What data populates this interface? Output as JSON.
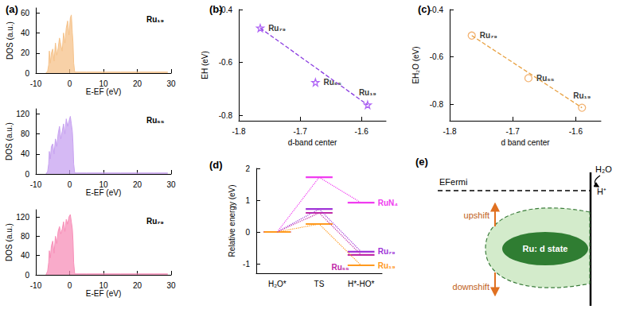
{
  "chart_data": [
    {
      "type": "area",
      "title": "(a)",
      "annotation": "Ru₁₉",
      "color": "#f5c28a",
      "xlabel": "E-EF (eV)",
      "ylabel": "DOS (a.u.)",
      "xlim": [
        -10,
        30
      ],
      "xticks": [
        -10,
        0,
        10,
        20,
        30
      ],
      "ylim": [
        0,
        65
      ],
      "yticks": [
        0,
        20,
        40,
        60
      ],
      "x": [
        -7,
        -6.5,
        -6.2,
        -6,
        -5.7,
        -5.4,
        -5,
        -4.6,
        -4.2,
        -3.8,
        -3.4,
        -3,
        -2.6,
        -2.2,
        -1.8,
        -1.4,
        -1,
        -0.6,
        -0.2,
        0.2,
        0.5,
        0.8,
        1,
        1.2,
        1.5,
        5,
        10,
        15,
        20,
        25,
        29
      ],
      "values": [
        0,
        2,
        8,
        22,
        10,
        20,
        24,
        12,
        30,
        18,
        25,
        35,
        28,
        22,
        40,
        30,
        45,
        52,
        38,
        55,
        58,
        40,
        30,
        10,
        1,
        1,
        1,
        1,
        1,
        1,
        1
      ]
    },
    {
      "type": "area",
      "annotation": "Ru₅₅",
      "color": "#c7a2f0",
      "xlabel": "E-EF (eV)",
      "ylabel": "DOS (a.u.)",
      "xlim": [
        -10,
        30
      ],
      "xticks": [
        -10,
        0,
        10,
        20,
        30
      ],
      "ylim": [
        0,
        130
      ],
      "yticks": [
        0,
        40,
        80,
        120
      ],
      "x": [
        -7,
        -6.5,
        -6.2,
        -6,
        -5.7,
        -5.4,
        -5,
        -4.6,
        -4.2,
        -3.8,
        -3.4,
        -3,
        -2.6,
        -2.2,
        -1.8,
        -1.4,
        -1,
        -0.6,
        -0.2,
        0.2,
        0.5,
        0.8,
        1,
        1.2,
        1.5,
        5,
        10,
        15,
        20,
        25,
        29
      ],
      "values": [
        0,
        5,
        20,
        45,
        30,
        55,
        60,
        40,
        70,
        55,
        80,
        95,
        70,
        85,
        100,
        80,
        110,
        95,
        105,
        115,
        100,
        85,
        60,
        20,
        2,
        2,
        2,
        2,
        2,
        2,
        2
      ]
    },
    {
      "type": "area",
      "annotation": "Ru₇₉",
      "color": "#f78fb8",
      "xlabel": "E-EF (eV)",
      "ylabel": "DOS (a.u.)",
      "xlim": [
        -10,
        30
      ],
      "xticks": [
        -10,
        0,
        10,
        20,
        30
      ],
      "ylim": [
        0,
        135
      ],
      "yticks": [
        0,
        40,
        80,
        120
      ],
      "x": [
        -7,
        -6.5,
        -6.2,
        -6,
        -5.7,
        -5.4,
        -5,
        -4.6,
        -4.2,
        -3.8,
        -3.4,
        -3,
        -2.6,
        -2.2,
        -1.8,
        -1.4,
        -1,
        -0.6,
        -0.2,
        0.2,
        0.5,
        0.8,
        1,
        1.2,
        1.5,
        5,
        10,
        15,
        20,
        25,
        29
      ],
      "values": [
        0,
        8,
        25,
        50,
        35,
        60,
        70,
        45,
        80,
        65,
        90,
        100,
        85,
        95,
        110,
        90,
        115,
        105,
        120,
        125,
        110,
        95,
        70,
        25,
        2,
        2,
        2,
        2,
        2,
        2,
        2
      ]
    },
    {
      "type": "scatter",
      "title": "(b)",
      "xlabel": "d-band center",
      "ylabel": "EH (eV)",
      "xlim": [
        -1.8,
        -1.56
      ],
      "xticks": [
        -1.8,
        -1.7,
        -1.6
      ],
      "ylim": [
        -0.82,
        -0.4
      ],
      "yticks": [
        -0.8,
        -0.6,
        -0.4
      ],
      "series": [
        {
          "type": "scatter",
          "marker": "star",
          "color": "#9b3df2",
          "x": [
            -1.765,
            -1.675,
            -1.59
          ],
          "values": [
            -0.47,
            -0.675,
            -0.76
          ],
          "point_labels": [
            "Ru₇₉",
            "Ru₅₅",
            "Ru₁₉"
          ]
        },
        {
          "type": "line",
          "line_style": "dashed",
          "color": "#8a3ce0",
          "x": [
            -1.765,
            -1.59
          ],
          "values": [
            -0.47,
            -0.76
          ]
        }
      ]
    },
    {
      "type": "scatter",
      "title": "(c)",
      "xlabel": "d band center",
      "ylabel": "EH₂O (eV)",
      "xlim": [
        -1.8,
        -1.56
      ],
      "xticks": [
        -1.8,
        -1.7,
        -1.6
      ],
      "ylim": [
        -0.87,
        -0.4
      ],
      "yticks": [
        -0.8,
        -0.6,
        -0.4
      ],
      "series": [
        {
          "type": "scatter",
          "marker": "circle",
          "color": "#f0a050",
          "x": [
            -1.765,
            -1.675,
            -1.59
          ],
          "values": [
            -0.51,
            -0.69,
            -0.815
          ],
          "point_labels": [
            "Ru₇₉",
            "Ru₅₅",
            "Ru₁₉"
          ]
        },
        {
          "type": "line",
          "line_style": "dashed",
          "color": "#e8a040",
          "x": [
            -1.765,
            -1.59
          ],
          "values": [
            -0.51,
            -0.815
          ]
        }
      ]
    },
    {
      "type": "line",
      "title": "(d)",
      "ylabel": "Relative energy (eV)",
      "categories": [
        "H₂O*",
        "TS",
        "H*-HO*"
      ],
      "ylim": [
        -1.3,
        2
      ],
      "yticks": [
        -1,
        0,
        1,
        2
      ],
      "series": [
        {
          "name": "RuN₄",
          "color": "#f03cf0",
          "line_style": "dotted",
          "values": [
            0,
            1.72,
            0.92
          ]
        },
        {
          "name": "Ru₇₉",
          "color": "#a034d8",
          "line_style": "dotted",
          "values": [
            0,
            0.72,
            -0.62
          ]
        },
        {
          "name": "Ru₅₅",
          "color": "#c02aa8",
          "line_style": "dotted",
          "values": [
            0,
            0.6,
            -0.72
          ]
        },
        {
          "name": "Ru₁₉",
          "color": "#ff9a1f",
          "line_style": "dotted",
          "values": [
            0,
            0.25,
            -1.05
          ]
        }
      ]
    }
  ],
  "diagram": {
    "title": "(e)",
    "fermi_label": "EFermi",
    "adsorbate": "H₂O",
    "proton": "H⁺",
    "up_label": "upshift",
    "down_label": "downshift",
    "center_label": "Ru: d state"
  }
}
